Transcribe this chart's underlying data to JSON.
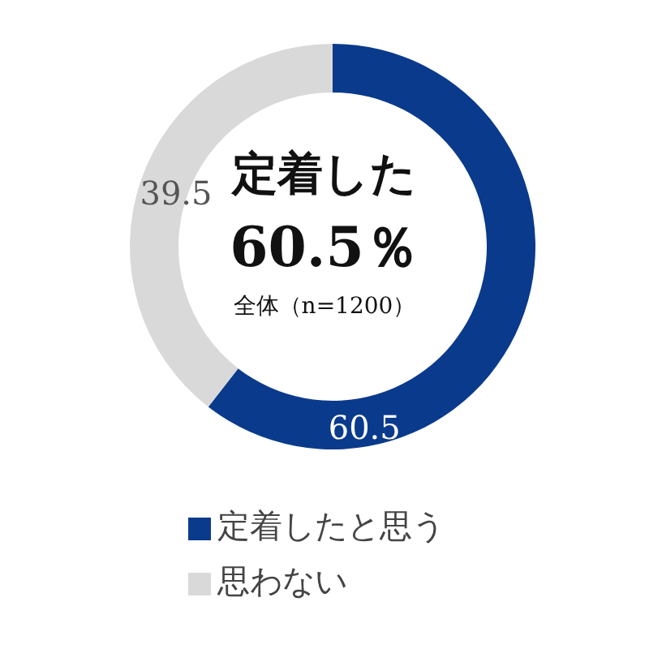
{
  "chart_data": {
    "type": "donut",
    "categories": [
      "定着したと思う",
      "思わない"
    ],
    "values": [
      60.5,
      39.5
    ],
    "colors": [
      "#0a3a8c",
      "#d9d9d9"
    ],
    "data_labels": true,
    "legend": "bottom",
    "annotations": [
      "定着した",
      "60.5％",
      "全体（n=1200）"
    ]
  }
}
